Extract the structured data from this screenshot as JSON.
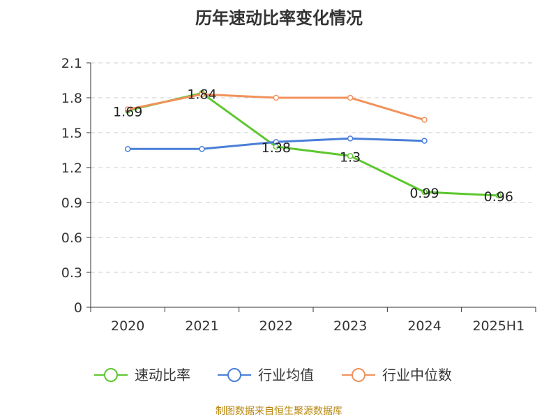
{
  "title": "历年速动比率变化情况",
  "footer": "制图数据来自恒生聚源数据库",
  "chart_data": {
    "type": "line",
    "categories": [
      "2020",
      "2021",
      "2022",
      "2023",
      "2024",
      "2025H1"
    ],
    "ylim": [
      0,
      2.1
    ],
    "yticks": [
      "0",
      "0.3",
      "0.6",
      "0.9",
      "1.2",
      "1.5",
      "1.8",
      "2.1"
    ],
    "grid": true,
    "legend_position": "bottom",
    "series": [
      {
        "name": "速动比率",
        "color": "#5cc72e",
        "values": [
          1.69,
          1.84,
          1.38,
          1.3,
          0.99,
          0.96
        ],
        "labels": [
          "1.69",
          "1.84",
          "1.38",
          "1.3",
          "0.99",
          "0.96"
        ]
      },
      {
        "name": "行业均值",
        "color": "#4a7fd8",
        "values": [
          1.36,
          1.36,
          1.42,
          1.45,
          1.43,
          null
        ],
        "labels": []
      },
      {
        "name": "行业中位数",
        "color": "#f0925c",
        "values": [
          1.7,
          1.83,
          1.8,
          1.8,
          1.61,
          null
        ],
        "labels": []
      }
    ]
  }
}
